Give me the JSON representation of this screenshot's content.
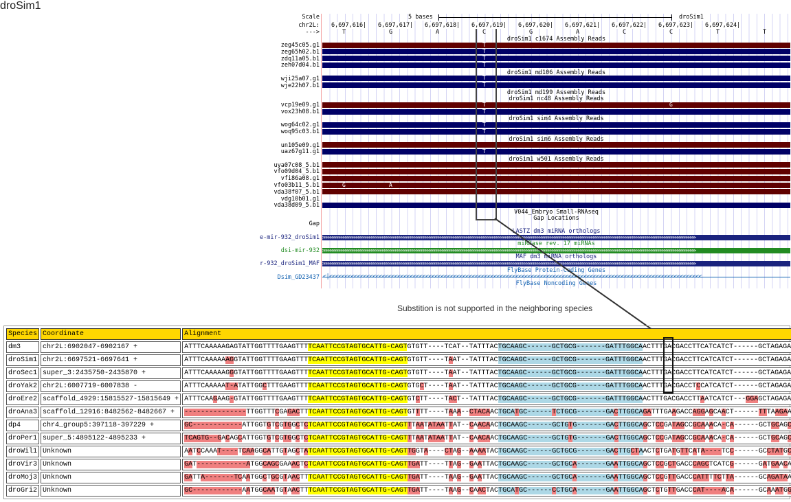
{
  "browser": {
    "title": "droSim1",
    "scale": {
      "label": "Scale",
      "text": "5 bases",
      "assembly": "droSim1"
    },
    "chrom_label": "chr2L:",
    "strand_label": "--->",
    "positions": [
      "6,697,616",
      "6,697,617",
      "6,697,618",
      "6,697,619",
      "6,697,620",
      "6,697,621",
      "6,697,622",
      "6,697,623",
      "6,697,624"
    ],
    "bases": [
      "T",
      "G",
      "A",
      "C",
      "G",
      "A",
      "C",
      "C",
      "T",
      "T"
    ],
    "rows": [
      {
        "type": "title",
        "text": "droSim1 c1674 Assembly Reads"
      },
      {
        "type": "read",
        "label": "zeg45c05.g1",
        "color": "#600000",
        "marks": [
          {
            "base_index": 3,
            "letter": "T"
          }
        ]
      },
      {
        "type": "read",
        "label": "zeg65h02.b1",
        "color": "#000066",
        "marks": [
          {
            "base_index": 3,
            "letter": "T"
          }
        ]
      },
      {
        "type": "read",
        "label": "zdq11a05.b1",
        "color": "#000066",
        "marks": [
          {
            "base_index": 3,
            "letter": "T"
          }
        ]
      },
      {
        "type": "read",
        "label": "zeh07d04.b1",
        "color": "#000066",
        "marks": [
          {
            "base_index": 3,
            "letter": "T"
          }
        ]
      },
      {
        "type": "title",
        "text": "droSim1 md106 Assembly Reads"
      },
      {
        "type": "read",
        "label": "wji25a07.g1",
        "color": "#000066",
        "marks": [
          {
            "base_index": 3,
            "letter": "T"
          }
        ]
      },
      {
        "type": "read",
        "label": "wje22h07.b1",
        "color": "#000066",
        "marks": [
          {
            "base_index": 3,
            "letter": "T"
          }
        ]
      },
      {
        "type": "title",
        "text": "droSim1 md199 Assembly Reads"
      },
      {
        "type": "title",
        "text": "droSim1 nc48 Assembly Reads"
      },
      {
        "type": "read",
        "label": "vcp19e09.g1",
        "color": "#600000",
        "marks": [
          {
            "base_index": 3,
            "letter": "T"
          },
          {
            "base_index": 7,
            "letter": "G"
          }
        ]
      },
      {
        "type": "read",
        "label": "vox23h08.b1",
        "color": "#000066",
        "marks": [
          {
            "base_index": 3,
            "letter": "T"
          }
        ]
      },
      {
        "type": "title",
        "text": "droSim1 sim4 Assembly Reads"
      },
      {
        "type": "read",
        "label": "wog64c02.g1",
        "color": "#000066",
        "marks": [
          {
            "base_index": 3,
            "letter": "T"
          }
        ]
      },
      {
        "type": "read",
        "label": "woq95c03.b1",
        "color": "#000066",
        "marks": [
          {
            "base_index": 3,
            "letter": "T"
          }
        ]
      },
      {
        "type": "title",
        "text": "droSim1 sim6 Assembly Reads"
      },
      {
        "type": "read",
        "label": "un105e09.g1",
        "color": "#600000",
        "marks": []
      },
      {
        "type": "read",
        "label": "uaz67g11.g1",
        "color": "#000066",
        "marks": [
          {
            "base_index": 3,
            "letter": "T"
          }
        ]
      },
      {
        "type": "title",
        "text": "droSim1 w501 Assembly Reads"
      },
      {
        "type": "read",
        "label": "uya07c08_5.b1",
        "color": "#600000",
        "marks": []
      },
      {
        "type": "read",
        "label": "vfo09d04_5.b1",
        "color": "#600000",
        "marks": []
      },
      {
        "type": "read",
        "label": "vfi86a08.g1",
        "color": "#600000",
        "marks": []
      },
      {
        "type": "read",
        "label": "vfo03b11_5.b1",
        "color": "#600000",
        "marks": [
          {
            "base_index": 0,
            "letter": "G"
          },
          {
            "base_index": 1,
            "letter": "A"
          }
        ]
      },
      {
        "type": "read",
        "label": "vda38f07_5.b1",
        "color": "#600000",
        "marks": []
      },
      {
        "type": "read",
        "label": "vdg10b01.g1",
        "color": null,
        "marks": []
      },
      {
        "type": "read",
        "label": "vda38d09_5.b1",
        "color": "#000066",
        "marks": []
      }
    ],
    "lower_tracks": {
      "small_rna_title": "V044_Embryo Small-RNAseq",
      "gap_title": "Gap Locations",
      "gap_label": "Gap",
      "lastz_title": "LASTZ dm3 miRNA orthologs",
      "lastz_item": "e-mir-932_droSim1",
      "mirbase_title": "miRBase rev. 17 miRNAs",
      "mirbase_item": "dsi-mir-932",
      "maf_title": "MAF dm3 miRNA orthologs",
      "maf_item": "r-932_droSim1_MAF",
      "flybase_title": "FlyBase Protein-Coding Genes",
      "flybase_item": "Dsim_GD23437",
      "noncoding_title": "FlyBase Noncoding Genes"
    },
    "colors": {
      "navy": "#1a237e",
      "green": "#228b22",
      "link": "#1060b0",
      "red_read": "#600000",
      "blue_read": "#000066"
    }
  },
  "caption": "Substition is not supported in the neighboring species",
  "table": {
    "headers": [
      "Species",
      "Coordinate",
      "Alignment"
    ],
    "rows": [
      {
        "species": "dm3",
        "coord": "chr2L:6902047-6902167 +",
        "seq": "ATTTCAAAAAGAGTATTGGTTTTGAAGTTTTCAATTCCGTAGTGCATTG-CAGTGTGTT----TCAT--TATTTACTGCAAGC------GCTGCG-------GATTTGGCAACTTTGACGACCTTCATCATCT------GCTAGAGA"
      },
      {
        "species": "droSim1",
        "coord": "chr2L:6697521-6697641 +",
        "seq": "ATTTCAAAAAAGGTATTGGTTTTGAAGTTTTCAATTCCGTAGTGCATTG-CAGTGTGTT----TAAT--TATTTACTGCAAGC------GCTGCG-------GATTTGGCAACTTTGACGACCTTCATCATCT------GCTAGAGA"
      },
      {
        "species": "droSec1",
        "coord": "super_3:2435750-2435870 +",
        "seq": "ATTTCAAAAAGGGTATTGGTTTTGAAGTTTTCAATTCCGTAGTGCATTG-CAGTGTGTT----TAAT--TATTTACTGCAAGC------GCTGCG-------GATTTGGCAACTTTGACGACCTTCATCATCT------GCTAGAGA"
      },
      {
        "species": "droYak2",
        "coord": "chr2L:6007719-6007838 -",
        "seq": "ATTTCAAAAAT-ATATTGGCTTTGAAGTTTTCAATTCCGTAGTGCATTG-CAGTGTGCT----TAAT--TATTTACTGCAAGC------GCTGCG-------GATTTGGCAACTTTGACGACCTCCATCATCT------GCTAGAGA"
      },
      {
        "species": "droEre2",
        "coord": "scaffold_4929:15815527-15815649 +",
        "seq": "ATTTCAAGAAG-GTATTGGTTTTGAAGTTTTCAATTCCGTAGTGCATTG-CAGTGTCTT----TACT--TATTTACTGCAAGC------GCTGCG-------GATTTGGCAACTTTGACGACCTTAATCATCT---GGAGCTAGAGA"
      },
      {
        "species": "droAna3",
        "coord": "scaffold_12916:8482562-8482667 +",
        "seq": "---------------TTGGTTTCGAGACTTTCAATTCCGTAGTGCATTG-CAGTGTTTT----TAAA--CTACAACTGCATGC------TCTGCG-------GACTTGGCAGATTTGAAGACCAGGAGCAACT------TTTAAGAA"
      },
      {
        "species": "dp4",
        "coord": "chr4_group5:397118-397229 +",
        "seq": "GC------------ATTGGTGTCGTGGCTCTCAATTCCGTAGTGCATTG-CAGTTTAATATAATTAT--CAACAACTGCAAGC------GCTGTG-------GACTTGGCAGCTCCGATAGCCGCAAACA-CA------GCTGCAGC"
      },
      {
        "species": "droPer1",
        "coord": "super_5:4895122-4895233 +",
        "seq": "TCAGTG--GACAGCATTGGTGTCGTGGCTCTCAATTCCGTAGTGCATTG-CAGTTTAATATAATTAT--CAACAACTGCAAGC------GCTGTG-------GACTTGGCAGCTCCGATAGCCGCAAACA-CA------GCTGCAGC"
      },
      {
        "species": "droWil1",
        "coord": "Unknown",
        "seq": "AATCCAAAT----TCAAGGCATTGTAGCTATCAATTCCGTAGTGCATTG-CAGTTGGTA----CTAG--AAAATACTGCAAGC------GCTGCG-------GACTTGCTAACTCTGATGTTCATA----TCC------GCCTATGC"
      },
      {
        "species": "droVir3",
        "coord": "Unknown",
        "seq": "GAT------------ATGGCAGCGAAACTCTCAATTCCGTAGTGCATTG-CAGTTGATT----TTAG--GAATTACTGCAAGC------GCTGCA-------GAATTGGCAGCTCCGCTGACCCAGCTCATCG------GATGAACA"
      },
      {
        "species": "droMoj3",
        "coord": "Unknown",
        "seq": "GATTA-------TCAATGGCTGCGTAACTTTCAATTCCGTAGTGCATTG-CAGTTGATT----TAAG--GAATTACTGCAAGC------GCTGCA-------GAATTGGCAGCTCCGTTGACCCATTTTCTTA------GCAGATAA"
      },
      {
        "species": "droGri2",
        "coord": "Unknown",
        "seq": "GC------------AATGGCAATGTAACTTTCAATTCCGTAGTGCATTG-CAGTTGATT----TAAG--CAACTACTGCATGC------CCTGCA-------GAATTGGCAGCTCTGTTGACCCAT----ACA------GCAAATGG"
      }
    ],
    "colors": {
      "header": "#ffd700",
      "seed": "#ffff00",
      "loop": "#add8e6",
      "mismatch": "#f08080"
    }
  }
}
